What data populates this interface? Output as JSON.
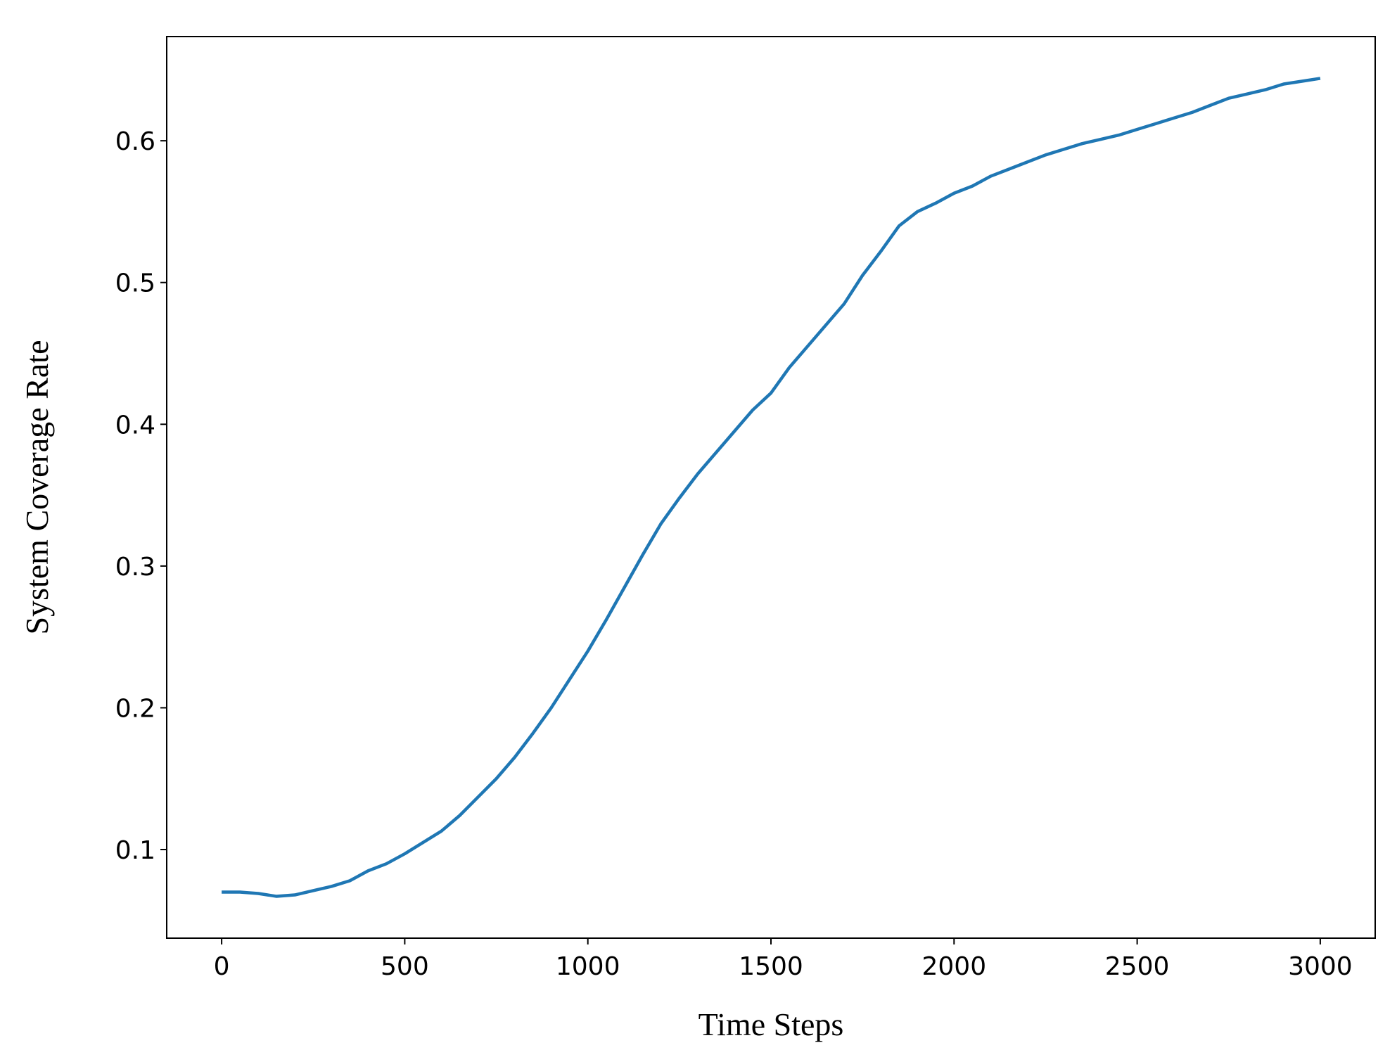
{
  "chart_data": {
    "type": "line",
    "x_label": "Time Steps",
    "y_label": "System Coverage Rate",
    "x": [
      0,
      50,
      100,
      150,
      200,
      250,
      300,
      350,
      400,
      450,
      500,
      550,
      600,
      650,
      700,
      750,
      800,
      850,
      900,
      950,
      1000,
      1050,
      1100,
      1150,
      1200,
      1250,
      1300,
      1350,
      1400,
      1450,
      1500,
      1550,
      1600,
      1650,
      1700,
      1750,
      1800,
      1850,
      1900,
      1950,
      2000,
      2050,
      2100,
      2150,
      2200,
      2250,
      2300,
      2350,
      2400,
      2450,
      2500,
      2550,
      2600,
      2650,
      2700,
      2750,
      2800,
      2850,
      2900,
      2950,
      3000
    ],
    "series": [
      {
        "name": "System Coverage Rate",
        "color": "#1f77b4",
        "values": [
          0.07,
          0.07,
          0.069,
          0.067,
          0.068,
          0.071,
          0.074,
          0.078,
          0.085,
          0.09,
          0.097,
          0.105,
          0.113,
          0.124,
          0.137,
          0.15,
          0.165,
          0.182,
          0.2,
          0.22,
          0.24,
          0.262,
          0.285,
          0.308,
          0.33,
          0.348,
          0.365,
          0.38,
          0.395,
          0.41,
          0.422,
          0.44,
          0.455,
          0.47,
          0.485,
          0.505,
          0.522,
          0.54,
          0.55,
          0.556,
          0.563,
          0.568,
          0.575,
          0.58,
          0.585,
          0.59,
          0.594,
          0.598,
          0.601,
          0.604,
          0.608,
          0.612,
          0.616,
          0.62,
          0.625,
          0.63,
          0.633,
          0.636,
          0.64,
          0.642,
          0.644
        ]
      }
    ],
    "xlim": [
      -150,
      3150
    ],
    "ylim": [
      0.0375,
      0.6735
    ],
    "xticks": [
      0,
      500,
      1000,
      1500,
      2000,
      2500,
      3000
    ],
    "yticks": [
      0.1,
      0.2,
      0.3,
      0.4,
      0.5,
      0.6
    ],
    "grid": false
  }
}
